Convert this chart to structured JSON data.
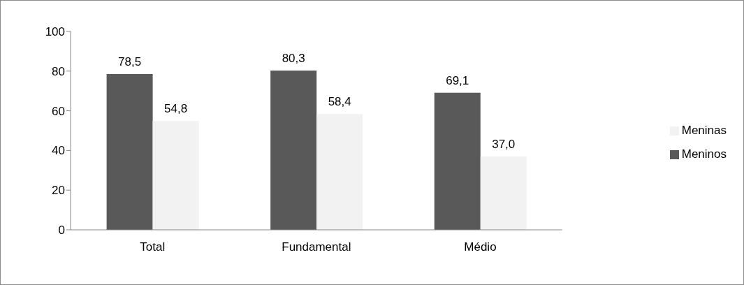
{
  "chart_data": {
    "type": "bar",
    "categories": [
      "Total",
      "Fundamental",
      "Médio"
    ],
    "series": [
      {
        "name": "Meninos",
        "color": "#595959",
        "values": [
          78.5,
          80.3,
          69.1
        ],
        "value_labels": [
          "78,5",
          "80,3",
          "69,1"
        ]
      },
      {
        "name": "Meninas",
        "color": "#f2f2f2",
        "values": [
          54.8,
          58.4,
          37.0
        ],
        "value_labels": [
          "54,8",
          "58,4",
          "37,0"
        ]
      }
    ],
    "ylim": [
      0,
      100
    ],
    "yticks": [
      0,
      20,
      40,
      60,
      80,
      100
    ],
    "grid": false,
    "legend": "right"
  }
}
